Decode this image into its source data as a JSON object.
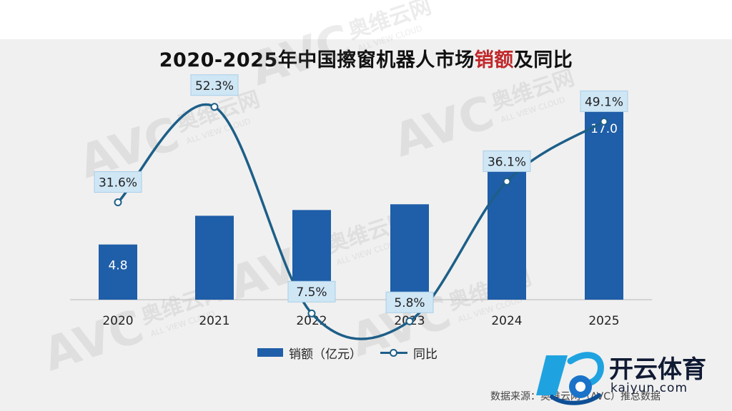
{
  "title_prefix": "2020-2025年中国擦窗机器人市场",
  "title_highlight": "销额",
  "title_suffix": "及同比",
  "source": "数据来源：奥维云网（AVC）推总数据",
  "brand": {
    "name": "开云体育",
    "url": "kaiyun.com"
  },
  "watermark": {
    "logo": "AVC",
    "cn": "奥维云网",
    "en": "ALL VIEW CLOUD"
  },
  "colors": {
    "bar": "#1f5ea8",
    "line": "#1d5f88",
    "label_bg": "#cfe6f5",
    "highlight": "#c0282a"
  },
  "chart_data": {
    "type": "bar",
    "title": "2020-2025年中国擦窗机器人市场销额及同比",
    "categories": [
      "2020",
      "2021",
      "2022",
      "2023",
      "2024",
      "2025"
    ],
    "series": [
      {
        "name": "销额（亿元）",
        "type": "bar",
        "values": [
          4.8,
          7.3,
          7.8,
          8.3,
          11.4,
          17.0
        ],
        "labels": [
          "4.8",
          "",
          "",
          "",
          "",
          "17.0"
        ]
      },
      {
        "name": "同比",
        "type": "line",
        "values": [
          31.6,
          52.3,
          7.5,
          5.8,
          36.1,
          49.1
        ],
        "labels": [
          "31.6%",
          "52.3%",
          "7.5%",
          "5.8%",
          "36.1%",
          "49.1%"
        ]
      }
    ],
    "ylim": [
      0,
      18
    ],
    "y2lim": [
      -5,
      60
    ],
    "legend_position": "bottom",
    "grid": false
  }
}
